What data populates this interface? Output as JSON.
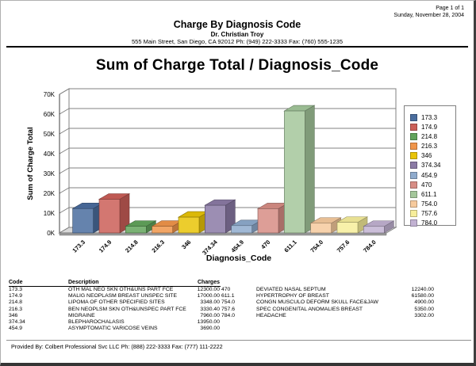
{
  "page": {
    "page_number": "Page 1 of 1",
    "date": "Sunday, November 28, 2004"
  },
  "header": {
    "report_title": "Charge By Diagnosis Code",
    "provider": "Dr. Christian Troy",
    "address": "555 Main Street, San Diego, CA 92012 Ph: (949) 222-3333 Fax: (760) 555-1235"
  },
  "chart_data": {
    "type": "bar",
    "style": "3d",
    "title": "Sum of Charge Total / Diagnosis_Code",
    "xlabel": "Diagnosis_Code",
    "ylabel": "Sum of Charge Total",
    "categories": [
      "173.3",
      "174.9",
      "214.8",
      "216.3",
      "346",
      "374.34",
      "454.9",
      "470",
      "611.1",
      "754.0",
      "757.6",
      "784.0"
    ],
    "values": [
      12300.0,
      17000.0,
      3348.0,
      3330.4,
      7960.0,
      13950.0,
      3690.0,
      12240.0,
      61580.0,
      4900.0,
      5350.0,
      3302.0
    ],
    "colors": [
      "#4a6d9e",
      "#cb5f58",
      "#62a45c",
      "#f0954a",
      "#e9c408",
      "#8b7aa5",
      "#8fabcd",
      "#d78d85",
      "#a4c79b",
      "#f6ca9d",
      "#f7ee9b",
      "#c2b2d2"
    ],
    "ylim": [
      0,
      70000
    ],
    "ytick_step": 10000,
    "ytick_labels": [
      "0K",
      "10K",
      "20K",
      "30K",
      "40K",
      "50K",
      "60K",
      "70K"
    ],
    "legend_position": "right",
    "grid": true
  },
  "table": {
    "headers": {
      "code": "Code",
      "description": "Description",
      "charges": "Charges"
    },
    "rows_left": [
      [
        "173.3",
        "OTH MAL NEO SKN OTH&UNS PART FCE",
        "12300.00"
      ],
      [
        "174.9",
        "MALIG NEOPLASM BREAST UNSPEC SITE",
        "17000.00"
      ],
      [
        "214.8",
        "LIPOMA OF OTHER SPECIFIED SITES",
        "3348.00"
      ],
      [
        "216.3",
        "BEN NEOPLSM SKN OTH&UNSPEC PART FCE",
        "3330.40"
      ],
      [
        "346",
        "MIGRAINE",
        "7960.00"
      ],
      [
        "374.34",
        "BLEPHAROCHALASIS",
        "13950.00"
      ],
      [
        "454.9",
        "ASYMPTOMATIC VARICOSE VEINS",
        "3690.00"
      ]
    ],
    "rows_right": [
      [
        "470",
        "DEVIATED NASAL SEPTUM",
        "12240.00"
      ],
      [
        "611.1",
        "HYPERTROPHY OF BREAST",
        "61580.00"
      ],
      [
        "754.0",
        "CONGN MUSCULO DEFORM SKULL FACE&JAW",
        "4900.00"
      ],
      [
        "757.6",
        "SPEC CONGENITAL ANOMALIES BREAST",
        "5350.00"
      ],
      [
        "784.0",
        "HEADACHE",
        "3302.00"
      ]
    ]
  },
  "footer": {
    "provided_by": "Provided By: Colbert Professional Svc LLC Ph: (888) 222-3333 Fax: (777) 111-2222"
  }
}
